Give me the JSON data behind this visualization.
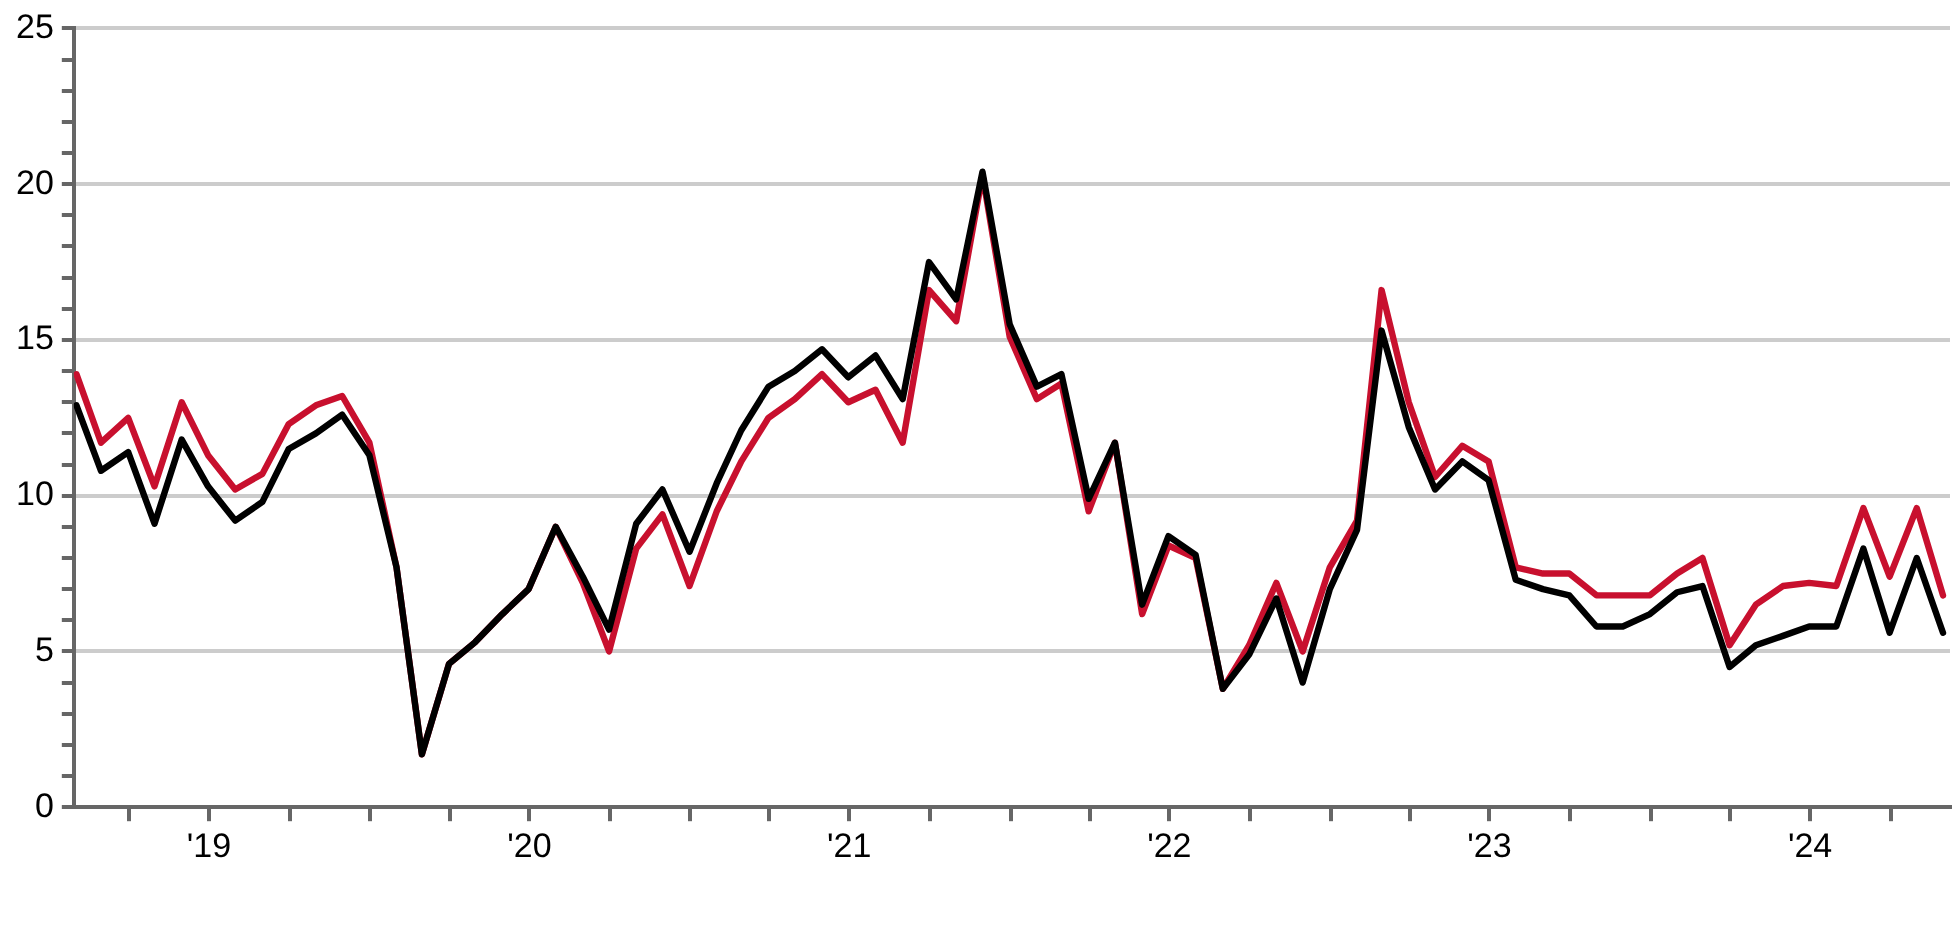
{
  "chart_data": {
    "type": "line",
    "x": [
      "2019-01-31",
      "2019-02-28",
      "2019-03-31",
      "2019-04-30",
      "2019-05-31",
      "2019-06-30",
      "2019-07-31",
      "2019-08-31",
      "2019-09-30",
      "2019-10-31",
      "2019-11-30",
      "2019-12-31",
      "2020-01-31",
      "2020-02-29",
      "2020-03-31",
      "2020-04-30",
      "2020-05-31",
      "2020-06-30",
      "2020-07-31",
      "2020-08-31",
      "2020-09-30",
      "2020-10-31",
      "2020-11-30",
      "2020-12-31",
      "2021-01-31",
      "2021-02-28",
      "2021-03-31",
      "2021-04-30",
      "2021-05-31",
      "2021-06-30",
      "2021-07-31",
      "2021-08-31",
      "2021-09-30",
      "2021-10-31",
      "2021-11-30",
      "2021-12-31",
      "2022-01-31",
      "2022-02-28",
      "2022-03-31",
      "2022-04-30",
      "2022-05-31",
      "2022-06-30",
      "2022-07-31",
      "2022-08-31",
      "2022-09-30",
      "2022-10-31",
      "2022-11-30",
      "2022-12-31",
      "2023-01-31",
      "2023-02-28",
      "2023-03-31",
      "2023-04-30",
      "2023-05-31",
      "2023-06-30",
      "2023-07-31",
      "2023-08-31",
      "2023-09-30",
      "2023-10-31",
      "2023-11-30",
      "2023-12-31",
      "2024-01-31",
      "2024-02-29",
      "2024-03-31",
      "2024-04-30",
      "2024-05-31",
      "2024-06-30",
      "2024-07-31",
      "2024-08-31",
      "2024-09-30",
      "2024-10-31",
      "2024-11-30"
    ],
    "series": [
      {
        "color": "#c8102e",
        "values": [
          13.9,
          11.7,
          12.5,
          10.3,
          13.0,
          11.3,
          10.2,
          10.7,
          12.3,
          12.9,
          13.2,
          11.7,
          7.7,
          1.7,
          4.6,
          5.3,
          6.2,
          7.0,
          9.0,
          7.2,
          5.0,
          8.3,
          9.4,
          7.1,
          9.5,
          11.1,
          12.5,
          13.1,
          13.9,
          13.0,
          13.4,
          11.7,
          16.6,
          15.6,
          20.3,
          15.1,
          13.1,
          13.6,
          9.5,
          11.7,
          6.2,
          8.4,
          8.0,
          3.8,
          5.2,
          7.2,
          5.0,
          7.7,
          9.2,
          16.6,
          13.0,
          10.6,
          11.6,
          11.1,
          7.7,
          7.5,
          7.5,
          6.8,
          6.8,
          6.8,
          7.5,
          8.0,
          5.2,
          6.5,
          7.1,
          7.2,
          7.1,
          9.6,
          7.4,
          9.6,
          6.8
        ]
      },
      {
        "color": "#000000",
        "values": [
          12.9,
          10.8,
          11.4,
          9.1,
          11.8,
          10.3,
          9.2,
          9.8,
          11.5,
          12.0,
          12.6,
          11.3,
          7.7,
          1.7,
          4.6,
          5.3,
          6.2,
          7.0,
          9.0,
          7.4,
          5.7,
          9.1,
          10.2,
          8.2,
          10.4,
          12.1,
          13.5,
          14.0,
          14.7,
          13.8,
          14.5,
          13.1,
          17.5,
          16.3,
          20.4,
          15.5,
          13.5,
          13.9,
          9.9,
          11.7,
          6.5,
          8.7,
          8.1,
          3.8,
          4.9,
          6.7,
          4.0,
          7.0,
          8.9,
          15.3,
          12.2,
          10.2,
          11.1,
          10.5,
          7.3,
          7.0,
          6.8,
          5.8,
          5.8,
          6.2,
          6.9,
          7.1,
          4.5,
          5.2,
          5.5,
          5.8,
          5.8,
          8.3,
          5.6,
          8.0,
          5.6
        ]
      }
    ],
    "xlim": [
      "2019-01-28",
      "2024-12-08"
    ],
    "xticks": [
      {
        "value": "2019-04-01",
        "label": null
      },
      {
        "value": "2019-07-01",
        "label": "'19"
      },
      {
        "value": "2019-10-01",
        "label": null
      },
      {
        "value": "2020-01-01",
        "label": null
      },
      {
        "value": "2020-04-01",
        "label": null
      },
      {
        "value": "2020-07-01",
        "label": "'20"
      },
      {
        "value": "2020-10-01",
        "label": null
      },
      {
        "value": "2021-01-01",
        "label": null
      },
      {
        "value": "2021-04-01",
        "label": null
      },
      {
        "value": "2021-07-01",
        "label": "'21"
      },
      {
        "value": "2021-10-01",
        "label": null
      },
      {
        "value": "2022-01-01",
        "label": null
      },
      {
        "value": "2022-04-01",
        "label": null
      },
      {
        "value": "2022-07-01",
        "label": "'22"
      },
      {
        "value": "2022-10-01",
        "label": null
      },
      {
        "value": "2023-01-01",
        "label": null
      },
      {
        "value": "2023-04-01",
        "label": null
      },
      {
        "value": "2023-07-01",
        "label": "'23"
      },
      {
        "value": "2023-10-01",
        "label": null
      },
      {
        "value": "2024-01-01",
        "label": null
      },
      {
        "value": "2024-04-01",
        "label": null
      },
      {
        "value": "2024-07-01",
        "label": "'24"
      },
      {
        "value": "2024-10-01",
        "label": null
      }
    ],
    "ylim": [
      0,
      25
    ],
    "yticks": [
      0,
      {
        "value": 1,
        "label": null
      },
      {
        "value": 2,
        "label": null
      },
      {
        "value": 3,
        "label": null
      },
      {
        "value": 4,
        "label": null
      },
      5,
      {
        "value": 6,
        "label": null
      },
      {
        "value": 7,
        "label": null
      },
      {
        "value": 8,
        "label": null
      },
      {
        "value": 9,
        "label": null
      },
      10,
      {
        "value": 11,
        "label": null
      },
      {
        "value": 12,
        "label": null
      },
      {
        "value": 13,
        "label": null
      },
      {
        "value": 14,
        "label": null
      },
      15,
      {
        "value": 16,
        "label": null
      },
      {
        "value": 17,
        "label": null
      },
      {
        "value": 18,
        "label": null
      },
      {
        "value": 19,
        "label": null
      },
      20,
      {
        "value": 21,
        "label": null
      },
      {
        "value": 22,
        "label": null
      },
      {
        "value": 23,
        "label": null
      },
      {
        "value": 24,
        "label": null
      },
      25
    ],
    "grid": "y",
    "legend": false,
    "marker": "none",
    "line_style": "solid"
  }
}
